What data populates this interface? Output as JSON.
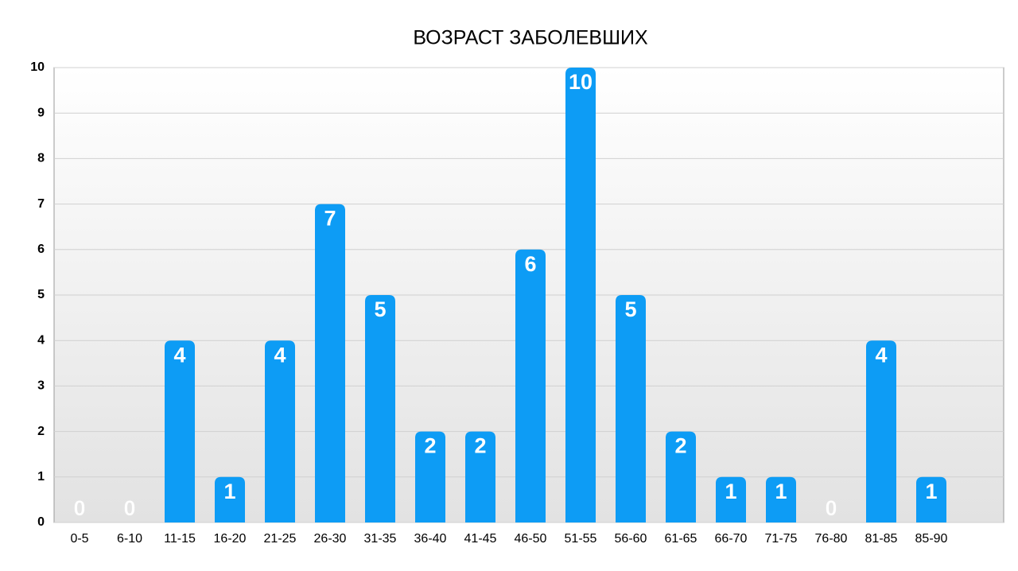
{
  "chart_data": {
    "type": "bar",
    "title": "ВОЗРАСТ ЗАБОЛЕВШИХ",
    "categories": [
      "0-5",
      "6-10",
      "11-15",
      "16-20",
      "21-25",
      "26-30",
      "31-35",
      "36-40",
      "41-45",
      "46-50",
      "51-55",
      "56-60",
      "61-65",
      "66-70",
      "71-75",
      "76-80",
      "81-85",
      "85-90"
    ],
    "values": [
      0,
      0,
      4,
      1,
      4,
      7,
      5,
      2,
      2,
      6,
      10,
      5,
      2,
      1,
      1,
      0,
      4,
      1
    ],
    "color": "#0d9cf5",
    "ylim": [
      0,
      10
    ],
    "yticks": [
      0,
      1,
      2,
      3,
      4,
      5,
      6,
      7,
      8,
      9,
      10
    ],
    "grid": true
  }
}
